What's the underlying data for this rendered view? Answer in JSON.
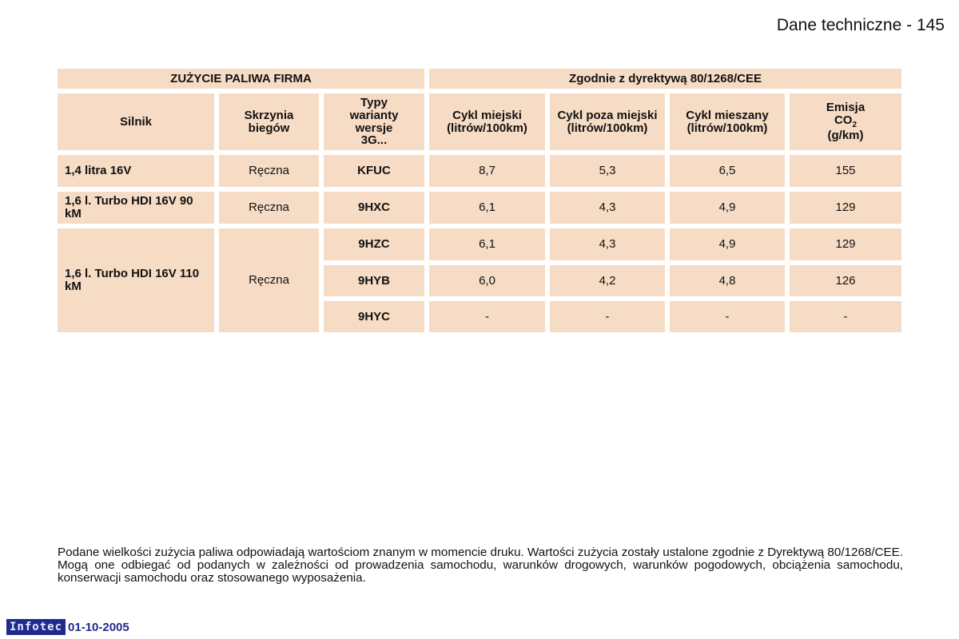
{
  "page": {
    "title": "Dane techniczne",
    "separator": "-",
    "number": "145"
  },
  "table": {
    "group_left": "ZUŻYCIE PALIWA FIRMA",
    "group_right": "Zgodnie z dyrektywą 80/1268/CEE",
    "headers": {
      "engine": "Silnik",
      "gearbox": "Skrzynia biegów",
      "type": "Typy warianty wersje 3G...",
      "urban": "Cykl miejski (litrów/100km)",
      "extra_urban": "Cykl poza miejski (litrów/100km)",
      "combined": "Cykl mieszany (litrów/100km)",
      "emission_prefix": "Emisja",
      "emission_co": "CO",
      "emission_sub": "2",
      "emission_unit": "(g/km)"
    },
    "engines": [
      "1,4 litra 16V",
      "1,6 l. Turbo HDI 16V 90 kM",
      "1,6 l. Turbo HDI 16V 110 kM"
    ],
    "gearboxes": [
      "Ręczna",
      "Ręczna",
      "Ręczna"
    ],
    "rows": [
      {
        "type": "KFUC",
        "urban": "8,7",
        "extra": "5,3",
        "combined": "6,5",
        "co2": "155"
      },
      {
        "type": "9HXC",
        "urban": "6,1",
        "extra": "4,3",
        "combined": "4,9",
        "co2": "129"
      },
      {
        "type": "9HZC",
        "urban": "6,1",
        "extra": "4,3",
        "combined": "4,9",
        "co2": "129"
      },
      {
        "type": "9HYB",
        "urban": "6,0",
        "extra": "4,2",
        "combined": "4,8",
        "co2": "126"
      },
      {
        "type": "9HYC",
        "urban": "-",
        "extra": "-",
        "combined": "-",
        "co2": "-"
      }
    ]
  },
  "footnote": "Podane wielkości zużycia paliwa odpowiadają wartościom znanym w momencie druku. Wartości zużycia zostały ustalone zgodnie z Dyrektywą 80/1268/CEE. Mogą one odbiegać od podanych w zależności od prowadzenia samochodu, warunków drogowych, warunków pogodowych, obciążenia samochodu, konserwacji samochodu oraz stosowanego wyposażenia.",
  "footer": {
    "brand": "Infotec",
    "date": "01-10-2005"
  }
}
